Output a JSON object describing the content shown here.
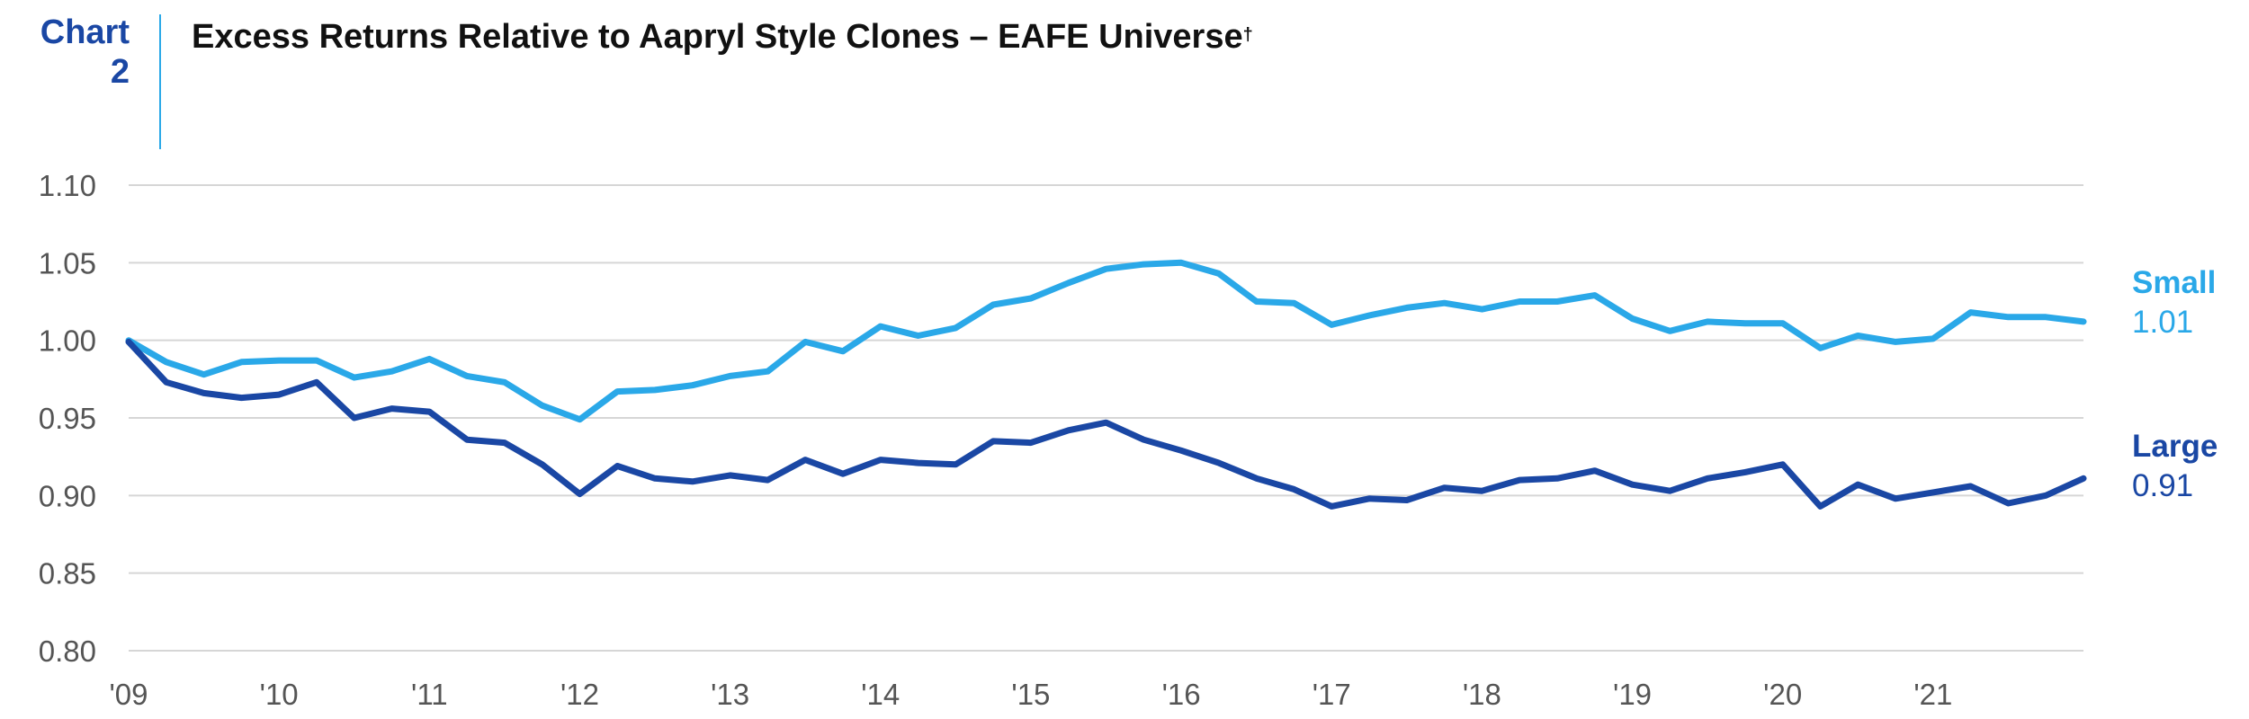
{
  "header": {
    "chart_label": "Chart",
    "chart_number": "2",
    "title": "Excess Returns Relative to Aapryl Style Clones – EAFE Universe",
    "title_mark": "†"
  },
  "chart_data": {
    "type": "line",
    "title": "Excess Returns Relative to Aapryl Style Clones – EAFE Universe†",
    "xlabel": "",
    "ylabel": "",
    "ylim": [
      0.8,
      1.1
    ],
    "y_ticks": [
      "1.10",
      "1.05",
      "1.00",
      "0.95",
      "0.90",
      "0.85",
      "0.80"
    ],
    "y_tick_values": [
      1.1,
      1.05,
      1.0,
      0.95,
      0.9,
      0.85,
      0.8
    ],
    "x_tick_labels": [
      "'09",
      "'10",
      "'11",
      "'12",
      "'13",
      "'14",
      "'15",
      "'16",
      "'17",
      "'18",
      "'19",
      "'20",
      "'21"
    ],
    "x_tick_values": [
      2009,
      2010,
      2011,
      2012,
      2013,
      2014,
      2015,
      2016,
      2017,
      2018,
      2019,
      2020,
      2021
    ],
    "xlim": [
      2009,
      2022
    ],
    "grid": true,
    "legend": "end-labels-right",
    "x": [
      2009.0,
      2009.25,
      2009.5,
      2009.75,
      2010.0,
      2010.25,
      2010.5,
      2010.75,
      2011.0,
      2011.25,
      2011.5,
      2011.75,
      2012.0,
      2012.25,
      2012.5,
      2012.75,
      2013.0,
      2013.25,
      2013.5,
      2013.75,
      2014.0,
      2014.25,
      2014.5,
      2014.75,
      2015.0,
      2015.25,
      2015.5,
      2015.75,
      2016.0,
      2016.25,
      2016.5,
      2016.75,
      2017.0,
      2017.25,
      2017.5,
      2017.75,
      2018.0,
      2018.25,
      2018.5,
      2018.75,
      2019.0,
      2019.25,
      2019.5,
      2019.75,
      2020.0,
      2020.25,
      2020.5,
      2020.75,
      2021.0,
      2021.25,
      2021.5,
      2021.75,
      2022.0
    ],
    "series": [
      {
        "name": "Small",
        "end_label": "1.01",
        "color": "#2aa8e8",
        "values": [
          1.0,
          0.986,
          0.978,
          0.986,
          0.987,
          0.987,
          0.976,
          0.98,
          0.988,
          0.977,
          0.973,
          0.958,
          0.949,
          0.967,
          0.968,
          0.971,
          0.977,
          0.98,
          0.999,
          0.993,
          1.009,
          1.003,
          1.008,
          1.023,
          1.027,
          1.037,
          1.046,
          1.049,
          1.05,
          1.043,
          1.025,
          1.024,
          1.01,
          1.016,
          1.021,
          1.024,
          1.02,
          1.025,
          1.025,
          1.029,
          1.014,
          1.006,
          1.012,
          1.011,
          1.011,
          0.995,
          1.003,
          0.999,
          1.001,
          1.018,
          1.015,
          1.015,
          1.012
        ]
      },
      {
        "name": "Large",
        "end_label": "0.91",
        "color": "#1a47a4",
        "values": [
          0.999,
          0.973,
          0.966,
          0.963,
          0.965,
          0.973,
          0.95,
          0.956,
          0.954,
          0.936,
          0.934,
          0.92,
          0.901,
          0.919,
          0.911,
          0.909,
          0.913,
          0.91,
          0.923,
          0.914,
          0.923,
          0.921,
          0.92,
          0.935,
          0.934,
          0.942,
          0.947,
          0.936,
          0.929,
          0.921,
          0.911,
          0.904,
          0.893,
          0.898,
          0.897,
          0.905,
          0.903,
          0.91,
          0.911,
          0.916,
          0.907,
          0.903,
          0.911,
          0.915,
          0.92,
          0.893,
          0.907,
          0.898,
          0.902,
          0.906,
          0.895,
          0.9,
          0.911
        ]
      }
    ]
  }
}
